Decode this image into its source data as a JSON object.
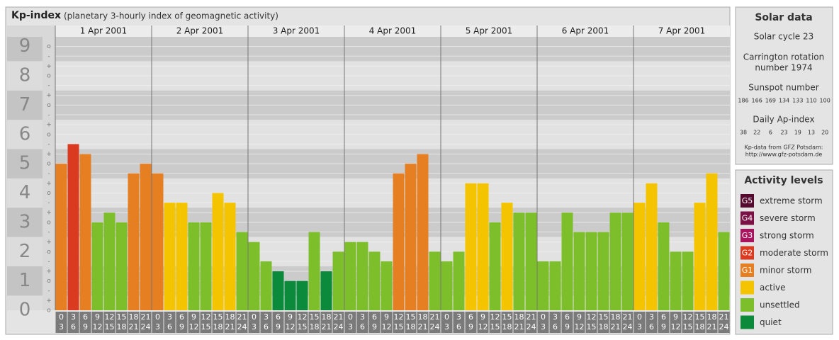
{
  "chart_data": {
    "type": "bar",
    "title": "Kp-index",
    "subtitle": "(planetary 3-hourly index of geomagnetic activity)",
    "days": [
      "1 Apr 2001",
      "2 Apr 2001",
      "3 Apr 2001",
      "4 Apr 2001",
      "5 Apr 2001",
      "6 Apr 2001",
      "7 Apr 2001"
    ],
    "hours": [
      [
        "0",
        "3"
      ],
      [
        "3",
        "6"
      ],
      [
        "6",
        "9"
      ],
      [
        "9",
        "12"
      ],
      [
        "12",
        "15"
      ],
      [
        "15",
        "18"
      ],
      [
        "18",
        "21"
      ],
      [
        "21",
        "24"
      ]
    ],
    "values": [
      5,
      5.67,
      5.33,
      3,
      3.33,
      3,
      4.67,
      5,
      4.67,
      3.67,
      3.67,
      3,
      3,
      4,
      3.67,
      2.67,
      2.33,
      1.67,
      1.33,
      1,
      1,
      2.67,
      1.33,
      2,
      2.33,
      2.33,
      2,
      1.67,
      4.67,
      5,
      5.33,
      2,
      1.67,
      2,
      4.33,
      4.33,
      3,
      3.67,
      3.33,
      3.33,
      1.67,
      1.67,
      3.33,
      2.67,
      2.67,
      2.67,
      3.33,
      3.33,
      3.67,
      4.33,
      3,
      2,
      2,
      3.67,
      4.67,
      2.67
    ],
    "colors": [
      "#e67e22",
      "#d93a20",
      "#e67e22",
      "#7cbf2a",
      "#7cbf2a",
      "#7cbf2a",
      "#e67e22",
      "#e67e22",
      "#e67e22",
      "#f5c400",
      "#f5c400",
      "#7cbf2a",
      "#7cbf2a",
      "#f5c400",
      "#f5c400",
      "#7cbf2a",
      "#7cbf2a",
      "#7cbf2a",
      "#0a8a3a",
      "#0a8a3a",
      "#0a8a3a",
      "#7cbf2a",
      "#0a8a3a",
      "#7cbf2a",
      "#7cbf2a",
      "#7cbf2a",
      "#7cbf2a",
      "#7cbf2a",
      "#e67e22",
      "#e67e22",
      "#e67e22",
      "#7cbf2a",
      "#7cbf2a",
      "#7cbf2a",
      "#f5c400",
      "#f5c400",
      "#7cbf2a",
      "#f5c400",
      "#7cbf2a",
      "#7cbf2a",
      "#7cbf2a",
      "#7cbf2a",
      "#7cbf2a",
      "#7cbf2a",
      "#7cbf2a",
      "#7cbf2a",
      "#7cbf2a",
      "#7cbf2a",
      "#f5c400",
      "#f5c400",
      "#7cbf2a",
      "#7cbf2a",
      "#7cbf2a",
      "#f5c400",
      "#f5c400",
      "#7cbf2a"
    ],
    "ylim": [
      0,
      9.33
    ],
    "yticks": [
      0,
      1,
      2,
      3,
      4,
      5,
      6,
      7,
      8,
      9
    ],
    "minor_yticks": [
      {
        "value": 0,
        "label": "o"
      },
      {
        "value": 0.33,
        "label": "+"
      },
      {
        "value": 0.67,
        "label": "-"
      },
      {
        "value": 1,
        "label": "o"
      },
      {
        "value": 1.33,
        "label": "+"
      },
      {
        "value": 1.67,
        "label": "-"
      },
      {
        "value": 2,
        "label": "o"
      },
      {
        "value": 2.33,
        "label": "+"
      },
      {
        "value": 2.67,
        "label": "-"
      },
      {
        "value": 3,
        "label": "o"
      },
      {
        "value": 3.33,
        "label": "+"
      },
      {
        "value": 3.67,
        "label": "-"
      },
      {
        "value": 4,
        "label": "o"
      },
      {
        "value": 4.33,
        "label": "+"
      },
      {
        "value": 4.67,
        "label": "-"
      },
      {
        "value": 5,
        "label": "o"
      },
      {
        "value": 5.33,
        "label": "+"
      },
      {
        "value": 5.67,
        "label": "-"
      },
      {
        "value": 6,
        "label": "o"
      },
      {
        "value": 6.33,
        "label": "+"
      },
      {
        "value": 6.67,
        "label": "-"
      },
      {
        "value": 7,
        "label": "o"
      },
      {
        "value": 7.33,
        "label": "+"
      },
      {
        "value": 7.67,
        "label": "-"
      },
      {
        "value": 8,
        "label": "o"
      },
      {
        "value": 8.33,
        "label": "+"
      },
      {
        "value": 8.67,
        "label": "-"
      },
      {
        "value": 9,
        "label": "o"
      }
    ],
    "grid": true
  },
  "solar_data": {
    "title": "Solar data",
    "cycle": "Solar cycle 23",
    "carrington": [
      "Carrington rotation",
      "number 1974"
    ],
    "sunspot_title": "Sunspot number",
    "sunspot": [
      186,
      166,
      169,
      134,
      133,
      110,
      100
    ],
    "ap_title": "Daily Ap-index",
    "ap": [
      38,
      22,
      6,
      23,
      19,
      13,
      20
    ],
    "source": [
      "Kp-data from GFZ Potsdam:",
      "http://www.gfz-potsdam.de"
    ]
  },
  "activity_levels": {
    "title": "Activity levels",
    "items": [
      {
        "badge": "G5",
        "label": "extreme storm",
        "color": "#55092e"
      },
      {
        "badge": "G4",
        "label": "severe storm",
        "color": "#7a1044"
      },
      {
        "badge": "G3",
        "label": "strong storm",
        "color": "#a8145e"
      },
      {
        "badge": "G2",
        "label": "moderate storm",
        "color": "#d93a20"
      },
      {
        "badge": "G1",
        "label": "minor storm",
        "color": "#e67e22"
      },
      {
        "badge": null,
        "label": "active",
        "color": "#f5c400"
      },
      {
        "badge": null,
        "label": "unsettled",
        "color": "#7cbf2a"
      },
      {
        "badge": null,
        "label": "quiet",
        "color": "#0a8a3a"
      }
    ]
  }
}
